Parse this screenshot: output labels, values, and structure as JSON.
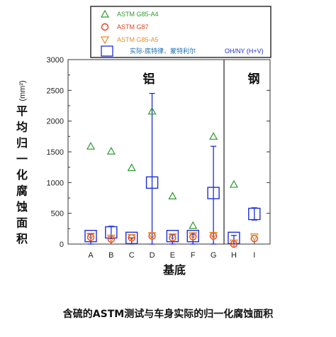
{
  "caption": "含硫的ASTM测试与车身实际的归一化腐蚀面积",
  "chart_data": {
    "type": "scatter",
    "xlabel": "基底",
    "ylabel": "平均归一化腐蚀面积(mm²)",
    "ylabel_unit": "(mm²)",
    "ylim": [
      0,
      3000
    ],
    "yticks": [
      0,
      500,
      1000,
      1500,
      2000,
      2500,
      3000
    ],
    "categories": [
      "A",
      "B",
      "C",
      "D",
      "E",
      "F",
      "G",
      "H",
      "I"
    ],
    "regions": [
      {
        "label": "铝",
        "categories": [
          "A",
          "B",
          "C",
          "D",
          "E",
          "F",
          "G"
        ]
      },
      {
        "label": "钢",
        "categories": [
          "H",
          "I"
        ]
      }
    ],
    "legend_position": "top",
    "series": [
      {
        "name": "ASTM G85-A4",
        "marker": "triangle-up",
        "color": "#2e9a2e",
        "values": [
          1590,
          1510,
          1240,
          2160,
          780,
          300,
          1750,
          970,
          null
        ]
      },
      {
        "name": "ASTM G87",
        "marker": "circle",
        "color": "#e8401c",
        "values": [
          110,
          80,
          100,
          130,
          100,
          120,
          130,
          0,
          90
        ]
      },
      {
        "name": "ASTM G85-A5",
        "marker": "triangle-down",
        "color": "#f08a24",
        "values": [
          130,
          100,
          110,
          140,
          120,
          140,
          145,
          20,
          120
        ]
      },
      {
        "name": "实际-底特律、蒙特利尔",
        "name_suffix": "OH/NY (H+V)",
        "marker": "square",
        "color": "#1c2fd6",
        "values": [
          130,
          190,
          100,
          1000,
          130,
          130,
          830,
          100,
          490
        ],
        "err_low": [
          0,
          90,
          0,
          0,
          0,
          0,
          0,
          0,
          390
        ],
        "err_high": [
          170,
          290,
          100,
          2450,
          160,
          160,
          1590,
          140,
          590
        ]
      }
    ]
  }
}
